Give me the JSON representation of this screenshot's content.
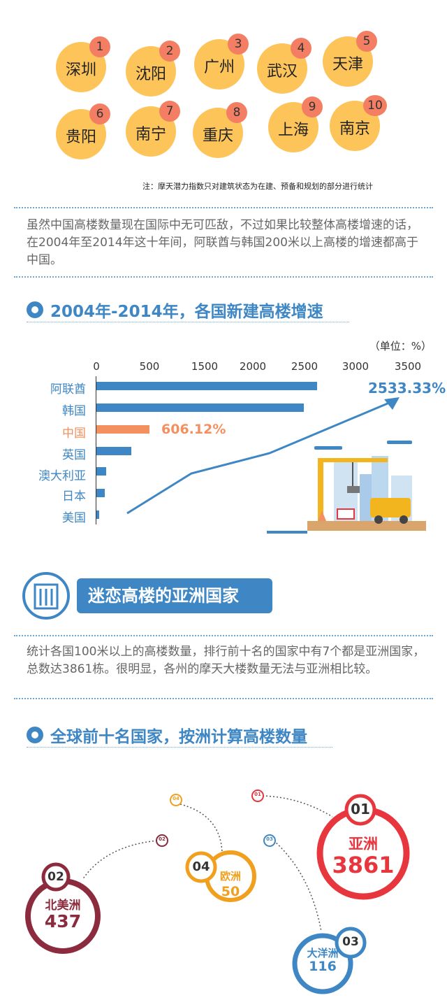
{
  "cities": [
    {
      "name": "深圳",
      "rank": "1"
    },
    {
      "name": "沈阳",
      "rank": "2"
    },
    {
      "name": "广州",
      "rank": "3"
    },
    {
      "name": "武汉",
      "rank": "4"
    },
    {
      "name": "天津",
      "rank": "5"
    },
    {
      "name": "贵阳",
      "rank": "6"
    },
    {
      "name": "南宁",
      "rank": "7"
    },
    {
      "name": "重庆",
      "rank": "8"
    },
    {
      "name": "上海",
      "rank": "9"
    },
    {
      "name": "南京",
      "rank": "10"
    }
  ],
  "note": "注：摩天潜力指数只对建筑状态为在建、预备和规划的部分进行统计",
  "paragraph1": "虽然中国高楼数量现在国际中无可匹敌，不过如果比较整体高楼增速的话，在2004年至2014年这十年间，阿联酋与韩国200米以上高楼的增速都高于中国。",
  "section1_title": "2004年-2014年，各国新建高楼增速",
  "chart_data": [
    {
      "type": "bar",
      "title": "2004年-2014年，各国新建高楼增速",
      "unit": "（单位：%）",
      "categories": [
        "阿联酋",
        "韩国",
        "中国",
        "英国",
        "澳大利亚",
        "日本",
        "美国"
      ],
      "values": [
        2533.33,
        2380,
        606.12,
        400,
        110,
        95,
        30
      ],
      "value_labels": [
        "2533.33%",
        "",
        "606.12%",
        "",
        "",
        "",
        ""
      ],
      "highlight": "中国",
      "xticks": [
        "0",
        "500",
        "1500",
        "2000",
        "2500",
        "3000",
        "3500"
      ],
      "xlim": [
        0,
        3500
      ],
      "colors": {
        "bar": "#3e87c4",
        "highlight": "#f4905f"
      }
    },
    {
      "type": "bubble",
      "title": "全球前十名国家，按洲计算高楼数量",
      "categories": [
        "亚洲",
        "北美洲",
        "欧洲",
        "大洋洲"
      ],
      "ranks": [
        "01",
        "02",
        "04",
        "03"
      ],
      "values": [
        3861,
        437,
        50,
        116
      ],
      "colors": [
        "#e8363e",
        "#8b2b3d",
        "#f0a01e",
        "#3e87c4"
      ]
    }
  ],
  "banner_title": "迷恋高楼的亚洲国家",
  "paragraph2": "统计各国100米以上的高楼数量，排行前十名的国家中有7个都是亚洲国家，总数达3861栋。很明显，各州的摩天大楼数量无法与亚洲相比较。",
  "section2_title": "全球前十名国家，按洲计算高楼数量",
  "bubbles": {
    "asia": {
      "rank": "01",
      "name": "亚洲",
      "value": "3861"
    },
    "namerica": {
      "rank": "02",
      "name": "北美洲",
      "value": "437"
    },
    "europe": {
      "rank": "04",
      "name": "欧洲",
      "value": "50"
    },
    "oceania": {
      "rank": "03",
      "name": "大洋洲",
      "value": "116"
    }
  }
}
